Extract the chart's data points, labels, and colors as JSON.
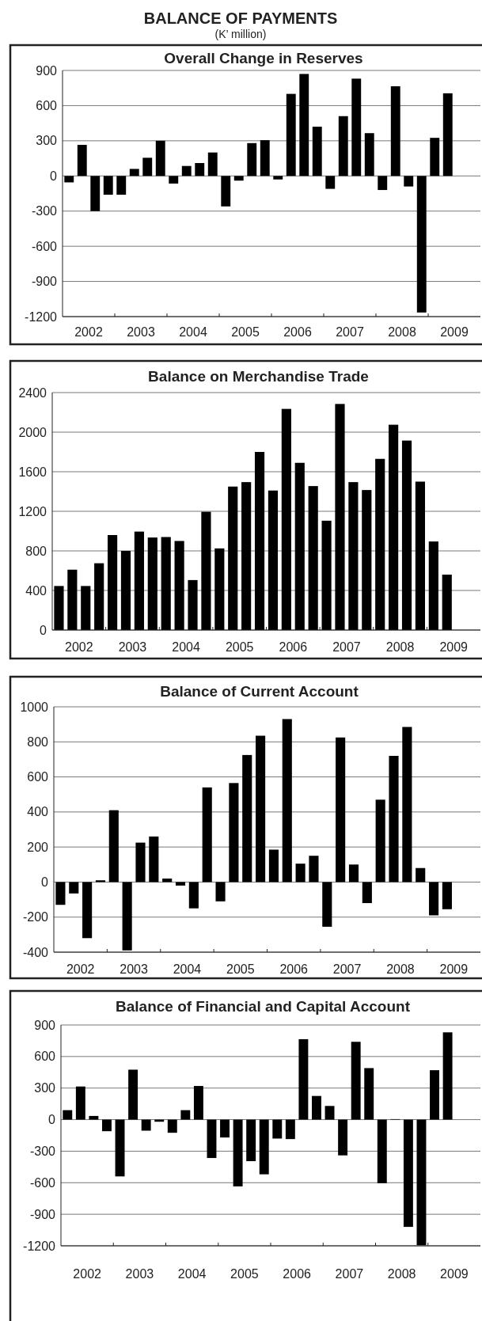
{
  "chart_data": [
    {
      "type": "bar",
      "title": "Overall Change in Reserves",
      "annotations": [
        "BALANCE OF PAYMENTS",
        "(K’ million)"
      ],
      "x": [
        2002.125,
        2002.375,
        2002.625,
        2002.875,
        2003.125,
        2003.375,
        2003.625,
        2003.875,
        2004.125,
        2004.375,
        2004.625,
        2004.875,
        2005.125,
        2005.375,
        2005.625,
        2005.875,
        2006.125,
        2006.375,
        2006.625,
        2006.875,
        2007.125,
        2007.375,
        2007.625,
        2007.875,
        2008.125,
        2008.375,
        2008.625,
        2008.875,
        2009.125,
        2009.375
      ],
      "values": [
        -55,
        265,
        -300,
        -160,
        -160,
        60,
        155,
        300,
        -65,
        85,
        110,
        200,
        -260,
        -40,
        280,
        305,
        -30,
        700,
        870,
        420,
        -110,
        510,
        830,
        365,
        -120,
        765,
        -90,
        -1165,
        325,
        705
      ],
      "color": "#000000",
      "xlim": [
        2002,
        2010
      ],
      "xticks": [
        {
          "value": 2002.5,
          "label": "2002"
        },
        {
          "value": 2003.5,
          "label": "2003"
        },
        {
          "value": 2004.5,
          "label": "2004"
        },
        {
          "value": 2005.5,
          "label": "2005"
        },
        {
          "value": 2006.5,
          "label": "2006"
        },
        {
          "value": 2007.5,
          "label": "2007"
        },
        {
          "value": 2008.5,
          "label": "2008"
        },
        {
          "value": 2009.5,
          "label": "2009"
        },
        {
          "value": 2003,
          "label": null
        },
        {
          "value": 2004,
          "label": null
        },
        {
          "value": 2005,
          "label": null
        },
        {
          "value": 2006,
          "label": null
        },
        {
          "value": 2007,
          "label": null
        },
        {
          "value": 2008,
          "label": null
        },
        {
          "value": 2009,
          "label": null
        }
      ],
      "ylim": [
        -1200,
        900
      ],
      "yticks": [
        -1200,
        -900,
        -600,
        -300,
        0,
        300,
        600,
        900
      ],
      "grid": "y"
    },
    {
      "type": "bar",
      "title": "Balance on Merchandise Trade",
      "x": [
        2002.125,
        2002.375,
        2002.625,
        2002.875,
        2003.125,
        2003.375,
        2003.625,
        2003.875,
        2004.125,
        2004.375,
        2004.625,
        2004.875,
        2005.125,
        2005.375,
        2005.625,
        2005.875,
        2006.125,
        2006.375,
        2006.625,
        2006.875,
        2007.125,
        2007.375,
        2007.625,
        2007.875,
        2008.125,
        2008.375,
        2008.625,
        2008.875,
        2009.125,
        2009.375
      ],
      "values": [
        445,
        610,
        445,
        675,
        960,
        800,
        995,
        935,
        940,
        900,
        505,
        1195,
        825,
        1450,
        1495,
        1800,
        1410,
        2235,
        1690,
        1455,
        1105,
        2285,
        1495,
        1415,
        1730,
        2075,
        1915,
        1500,
        895,
        560
      ],
      "color": "#000000",
      "xlim": [
        2002,
        2010
      ],
      "xticks": [
        {
          "value": 2002.5,
          "label": "2002"
        },
        {
          "value": 2003.5,
          "label": "2003"
        },
        {
          "value": 2004.5,
          "label": "2004"
        },
        {
          "value": 2005.5,
          "label": "2005"
        },
        {
          "value": 2006.5,
          "label": "2006"
        },
        {
          "value": 2007.5,
          "label": "2007"
        },
        {
          "value": 2008.5,
          "label": "2008"
        },
        {
          "value": 2009.5,
          "label": "2009"
        },
        {
          "value": 2003,
          "label": null
        },
        {
          "value": 2004,
          "label": null
        },
        {
          "value": 2005,
          "label": null
        },
        {
          "value": 2006,
          "label": null
        },
        {
          "value": 2007,
          "label": null
        },
        {
          "value": 2008,
          "label": null
        },
        {
          "value": 2009,
          "label": null
        }
      ],
      "ylim": [
        0,
        2400
      ],
      "yticks": [
        0,
        400,
        800,
        1200,
        1600,
        2000,
        2400
      ],
      "grid": "y"
    },
    {
      "type": "bar",
      "title": "Balance of Current Account",
      "x": [
        2002.125,
        2002.375,
        2002.625,
        2002.875,
        2003.125,
        2003.375,
        2003.625,
        2003.875,
        2004.125,
        2004.375,
        2004.625,
        2004.875,
        2005.125,
        2005.375,
        2005.625,
        2005.875,
        2006.125,
        2006.375,
        2006.625,
        2006.875,
        2007.125,
        2007.375,
        2007.625,
        2007.875,
        2008.125,
        2008.375,
        2008.625,
        2008.875,
        2009.125,
        2009.375
      ],
      "values": [
        -130,
        -65,
        -320,
        10,
        410,
        -390,
        225,
        260,
        20,
        -20,
        -150,
        540,
        -110,
        565,
        725,
        835,
        185,
        930,
        105,
        150,
        -255,
        825,
        100,
        -120,
        470,
        720,
        885,
        80,
        -190,
        -155
      ],
      "color": "#000000",
      "xlim": [
        2002,
        2010
      ],
      "xticks": [
        {
          "value": 2002.5,
          "label": "2002"
        },
        {
          "value": 2003.5,
          "label": "2003"
        },
        {
          "value": 2004.5,
          "label": "2004"
        },
        {
          "value": 2005.5,
          "label": "2005"
        },
        {
          "value": 2006.5,
          "label": "2006"
        },
        {
          "value": 2007.5,
          "label": "2007"
        },
        {
          "value": 2008.5,
          "label": "2008"
        },
        {
          "value": 2009.5,
          "label": "2009"
        },
        {
          "value": 2003,
          "label": null
        },
        {
          "value": 2004,
          "label": null
        },
        {
          "value": 2005,
          "label": null
        },
        {
          "value": 2006,
          "label": null
        },
        {
          "value": 2007,
          "label": null
        },
        {
          "value": 2008,
          "label": null
        },
        {
          "value": 2009,
          "label": null
        }
      ],
      "ylim": [
        -400,
        1000
      ],
      "yticks": [
        -400,
        -200,
        0,
        200,
        400,
        600,
        800,
        1000
      ],
      "grid": "y"
    },
    {
      "type": "bar",
      "title": "Balance of Financial and Capital Account",
      "x": [
        2002.125,
        2002.375,
        2002.625,
        2002.875,
        2003.125,
        2003.375,
        2003.625,
        2003.875,
        2004.125,
        2004.375,
        2004.625,
        2004.875,
        2005.125,
        2005.375,
        2005.625,
        2005.875,
        2006.125,
        2006.375,
        2006.625,
        2006.875,
        2007.125,
        2007.375,
        2007.625,
        2007.875,
        2008.125,
        2008.375,
        2008.625,
        2008.875,
        2009.125,
        2009.375
      ],
      "values": [
        90,
        315,
        35,
        -110,
        -540,
        475,
        -105,
        -20,
        -125,
        90,
        320,
        -365,
        -170,
        -635,
        -395,
        -520,
        -180,
        -185,
        765,
        225,
        130,
        -340,
        740,
        490,
        -605,
        5,
        -1020,
        -1195,
        470,
        830
      ],
      "color": "#000000",
      "xlim": [
        2002,
        2010
      ],
      "xticks": [
        {
          "value": 2002.5,
          "label": "2002"
        },
        {
          "value": 2003.5,
          "label": "2003"
        },
        {
          "value": 2004.5,
          "label": "2004"
        },
        {
          "value": 2005.5,
          "label": "2005"
        },
        {
          "value": 2006.5,
          "label": "2006"
        },
        {
          "value": 2007.5,
          "label": "2007"
        },
        {
          "value": 2008.5,
          "label": "2008"
        },
        {
          "value": 2009.5,
          "label": "2009"
        },
        {
          "value": 2003,
          "label": null
        },
        {
          "value": 2004,
          "label": null
        },
        {
          "value": 2005,
          "label": null
        },
        {
          "value": 2006,
          "label": null
        },
        {
          "value": 2007,
          "label": null
        },
        {
          "value": 2008,
          "label": null
        },
        {
          "value": 2009,
          "label": null
        }
      ],
      "ylim": [
        -1200,
        900
      ],
      "yticks": [
        -1200,
        -900,
        -600,
        -300,
        0,
        300,
        600,
        900
      ],
      "grid": "y"
    }
  ]
}
